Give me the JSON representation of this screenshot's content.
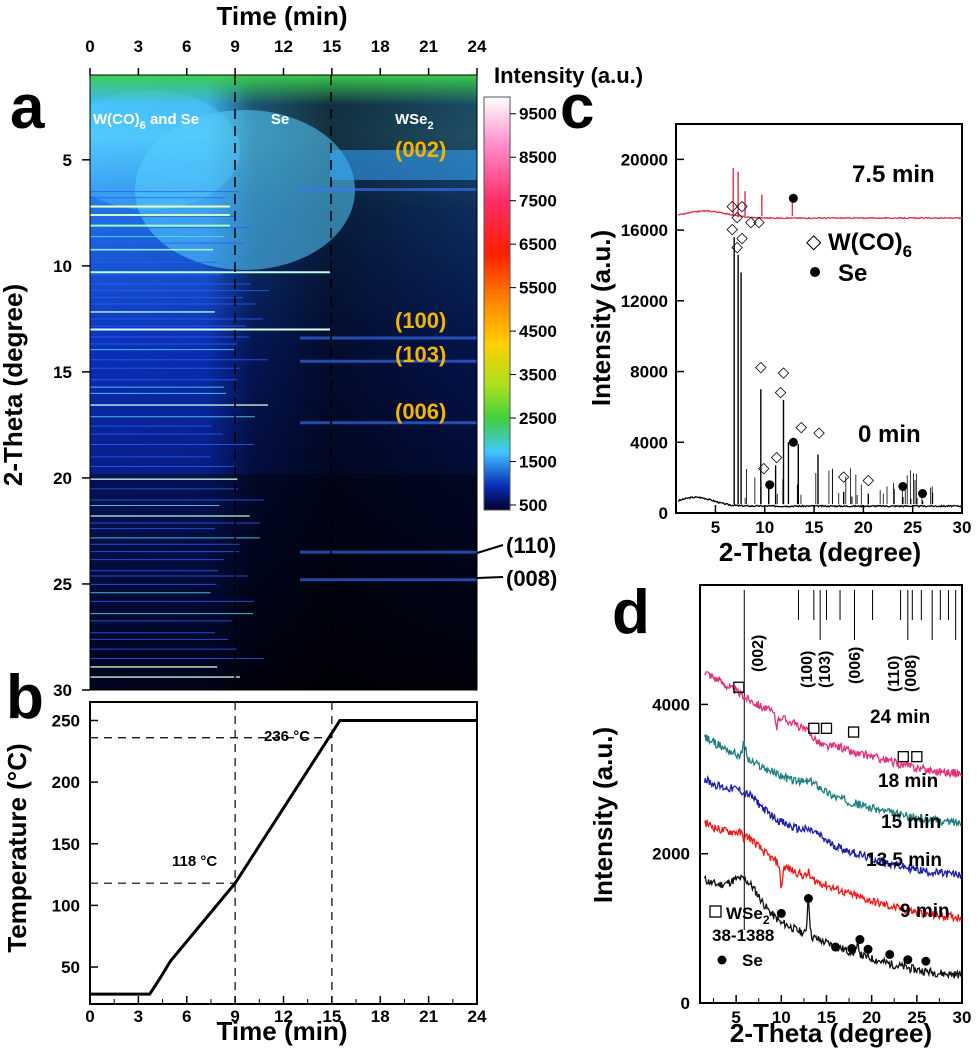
{
  "panels": {
    "a": {
      "label": "a",
      "top_axis_label": "Time (min)",
      "top_ticks": [
        "0",
        "3",
        "6",
        "9",
        "12",
        "15",
        "18",
        "21",
        "24"
      ],
      "ylabel": "2-Theta (degree)",
      "y_ticks": [
        "5",
        "10",
        "15",
        "20",
        "25",
        "30"
      ],
      "region_labels": {
        "r1_main": "W(CO)",
        "r1_sub": "6",
        "r1_tail": " and Se",
        "r2": "Se",
        "r3_main": "WSe",
        "r3_sub": "2"
      },
      "inner_hkl": [
        "(002)",
        "(100)",
        "(103)",
        "(006)"
      ],
      "outer_hkl": [
        "(110)",
        "(008)"
      ],
      "colorbar_title": "Intensity (a.u.)",
      "colorbar_ticks": [
        "9500",
        "8500",
        "7500",
        "6500",
        "5500",
        "4500",
        "3500",
        "2500",
        "1500",
        "500"
      ],
      "colors": {
        "dark": "#000000",
        "blue": "#0a2fb8",
        "cyan": "#5fd3ff",
        "green": "#3cd24a",
        "hkl": "#f5b400"
      }
    },
    "b": {
      "label": "b",
      "xlabel": "Time (min)",
      "ylabel": "Temperature (°C)",
      "x_ticks": [
        "0",
        "3",
        "6",
        "9",
        "12",
        "15",
        "18",
        "21",
        "24"
      ],
      "y_ticks": [
        "50",
        "100",
        "150",
        "200",
        "250"
      ],
      "annotations": [
        "118 °C",
        "236 °C"
      ]
    },
    "c": {
      "label": "c",
      "xlabel": "2-Theta (degree)",
      "ylabel": "Intensity (a.u.)",
      "x_ticks": [
        "5",
        "10",
        "15",
        "20",
        "25",
        "30"
      ],
      "y_ticks": [
        "0",
        "4000",
        "8000",
        "12000",
        "16000",
        "20000"
      ],
      "curve_labels": [
        "7.5 min",
        "0 min"
      ],
      "legend": {
        "wco_main": "W(CO)",
        "wco_sub": "6",
        "se": "Se"
      }
    },
    "d": {
      "label": "d",
      "xlabel": "2-Theta (degree)",
      "ylabel": "Intensity (a.u.)",
      "x_ticks": [
        "5",
        "10",
        "15",
        "20",
        "25",
        "30"
      ],
      "y_ticks": [
        "0",
        "2000",
        "4000"
      ],
      "curve_labels": [
        "24 min",
        "18 min",
        "15 min",
        "13.5 min",
        "9 min"
      ],
      "hkl": [
        "(002)",
        "(100)",
        "(103)",
        "(006)",
        "(110)",
        "(008)"
      ],
      "legend": {
        "wse_main": "WSe",
        "wse_sub": "2",
        "pdf": "38-1388",
        "se": "Se"
      },
      "colors": {
        "24 min": "#e0307a",
        "18 min": "#1f7f80",
        "15 min": "#1c1fa8",
        "13.5 min": "#f01818",
        "9 min": "#111111"
      }
    }
  },
  "chart_data": [
    {
      "type": "heatmap",
      "title": "",
      "xlabel": "Time (min)",
      "ylabel": "2-Theta (degree)",
      "xlim": [
        0,
        24
      ],
      "ylim": [
        30,
        1
      ],
      "colorbar_label": "Intensity (a.u.)",
      "colorbar_range": [
        500,
        10000
      ],
      "phase_boundaries_min": [
        9,
        15
      ],
      "regions": [
        "W(CO)6 and Se",
        "Se",
        "WSe2"
      ],
      "reflections_2theta": {
        "(002)": 6.4,
        "(100)": 13.4,
        "(103)": 14.5,
        "(006)": 17.4,
        "(110)": 23.5,
        "(008)": 24.8
      }
    },
    {
      "type": "line",
      "title": "",
      "xlabel": "Time (min)",
      "ylabel": "Temperature (°C)",
      "xlim": [
        0,
        24
      ],
      "ylim": [
        20,
        265
      ],
      "series": [
        {
          "name": "",
          "x": [
            0,
            3.7,
            4.3,
            5,
            9,
            15.5,
            24
          ],
          "y": [
            28,
            28,
            40,
            55,
            118,
            250,
            250
          ]
        }
      ],
      "annotations": [
        {
          "text": "118 °C",
          "x": 9,
          "y": 118
        },
        {
          "text": "236 °C",
          "x": 15,
          "y": 236
        }
      ]
    },
    {
      "type": "line",
      "title": "",
      "xlabel": "2-Theta (degree)",
      "ylabel": "Intensity (a.u.)",
      "xlim": [
        1,
        30
      ],
      "ylim": [
        0,
        22000
      ],
      "series": [
        {
          "name": "0 min",
          "baseline": 500,
          "peaks": [
            [
              6.9,
              15600
            ],
            [
              7.3,
              14600
            ],
            [
              7.6,
              13600
            ],
            [
              9.6,
              7000
            ],
            [
              10.4,
              1400
            ],
            [
              11.1,
              2700
            ],
            [
              11.9,
              6400
            ],
            [
              12.4,
              4000
            ],
            [
              13.4,
              3900
            ],
            [
              15.4,
              3300
            ],
            [
              18,
              1200
            ],
            [
              20.5,
              1100
            ],
            [
              24,
              900
            ],
            [
              26,
              700
            ]
          ]
        },
        {
          "name": "7.5 min",
          "baseline": 16800,
          "peaks": [
            [
              6.8,
              19500
            ],
            [
              7.3,
              19300
            ],
            [
              8,
              18200
            ],
            [
              9.7,
              18000
            ],
            [
              12.8,
              17900
            ]
          ]
        }
      ],
      "markers": {
        "W(CO)6": [
          6.6,
          7.1,
          7.6,
          8.6,
          9.4,
          9.7,
          11.1,
          11.9,
          12.3,
          13.5,
          15.4,
          18,
          20.5
        ],
        "Se": [
          10.5,
          12.9,
          24,
          26
        ]
      }
    },
    {
      "type": "line",
      "title": "",
      "xlabel": "2-Theta (degree)",
      "ylabel": "Intensity (a.u.)",
      "xlim": [
        1,
        30
      ],
      "ylim": [
        0,
        5600
      ],
      "series": [
        {
          "name": "9 min",
          "start": 1650,
          "end": 380,
          "peaks": [
            [
              10,
              1050
            ],
            [
              13,
              1400
            ],
            [
              18.5,
              780
            ]
          ]
        },
        {
          "name": "13.5 min",
          "start": 2420,
          "end": 1150,
          "peaks": [
            [
              5.9,
              2050
            ],
            [
              10,
              1550
            ],
            [
              13,
              1750
            ]
          ]
        },
        {
          "name": "15 min",
          "start": 3000,
          "end": 1720,
          "peaks": [
            [
              5.9,
              2650
            ],
            [
              13.5,
              2300
            ]
          ]
        },
        {
          "name": "18 min",
          "start": 3560,
          "end": 2420,
          "peaks": [
            [
              5.9,
              3480
            ],
            [
              13.5,
              2950
            ]
          ]
        },
        {
          "name": "24 min",
          "start": 4450,
          "end": 3080,
          "peaks": [
            [
              5.9,
              4100
            ],
            [
              9.5,
              3700
            ],
            [
              14.7,
              3450
            ],
            [
              18,
              3350
            ]
          ]
        }
      ],
      "reference_lines_2theta": [
        5.9,
        11.9,
        13.6,
        14.3,
        15,
        16.5,
        18.1,
        20.1,
        23.2,
        24,
        24.5,
        25.5,
        26.7,
        27.6,
        28.5,
        29.3
      ]
    }
  ]
}
